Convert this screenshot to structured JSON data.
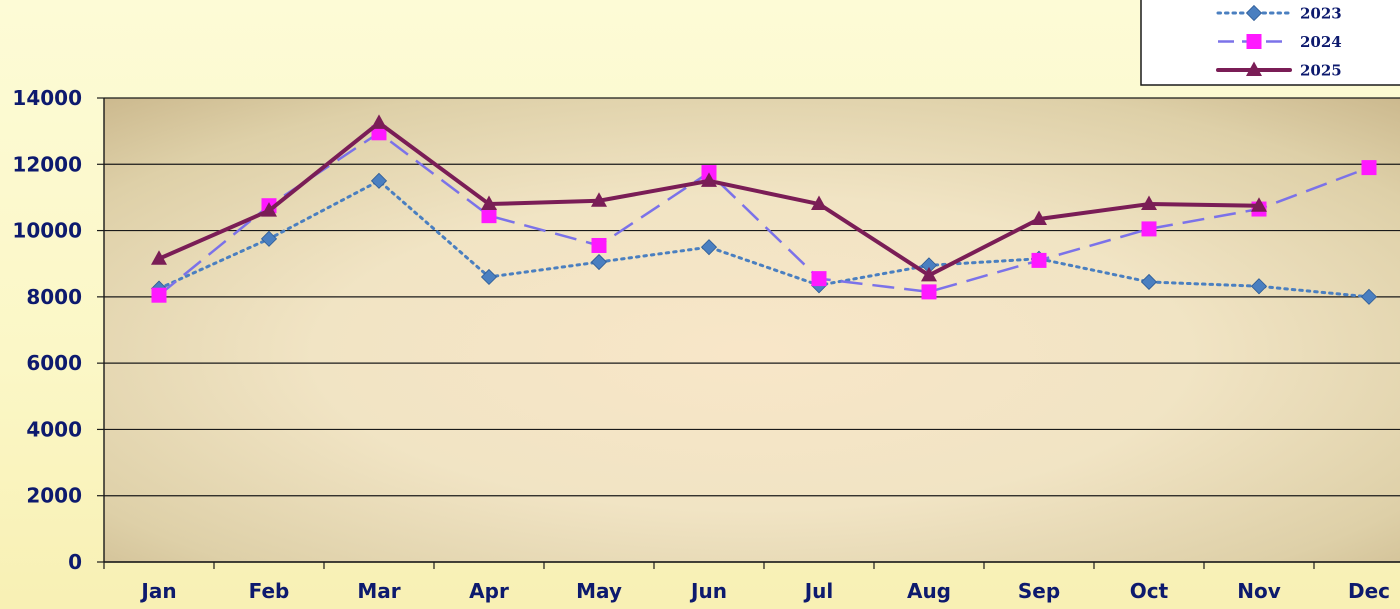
{
  "chart_data": {
    "type": "line",
    "categories": [
      "Jan",
      "Feb",
      "Mar",
      "Apr",
      "May",
      "Jun",
      "Jul",
      "Aug",
      "Sep",
      "Oct",
      "Nov",
      "Dec"
    ],
    "ylim": [
      0,
      14000
    ],
    "yticks": [
      0,
      2000,
      4000,
      6000,
      8000,
      10000,
      12000,
      14000
    ],
    "grid": true,
    "legend_position": "top-right",
    "series": [
      {
        "name": "2023",
        "color": "#4a7fc0",
        "line_style": "dotted",
        "marker": "diamond",
        "values": [
          8250,
          9750,
          11500,
          8600,
          9050,
          9500,
          8350,
          8950,
          9150,
          8450,
          8320,
          8000
        ]
      },
      {
        "name": "2024",
        "color": "#ff19ff",
        "line_color": "#7b72e9",
        "line_style": "dashed",
        "marker": "square",
        "values": [
          8050,
          10750,
          12950,
          10450,
          9550,
          11750,
          8550,
          8150,
          9100,
          10050,
          10650,
          11900
        ]
      },
      {
        "name": "2025",
        "color": "#7a1d56",
        "line_style": "solid",
        "marker": "triangle",
        "values": [
          9150,
          10600,
          13250,
          10800,
          10900,
          11500,
          10800,
          8650,
          10350,
          10800,
          10750,
          null
        ]
      }
    ]
  }
}
